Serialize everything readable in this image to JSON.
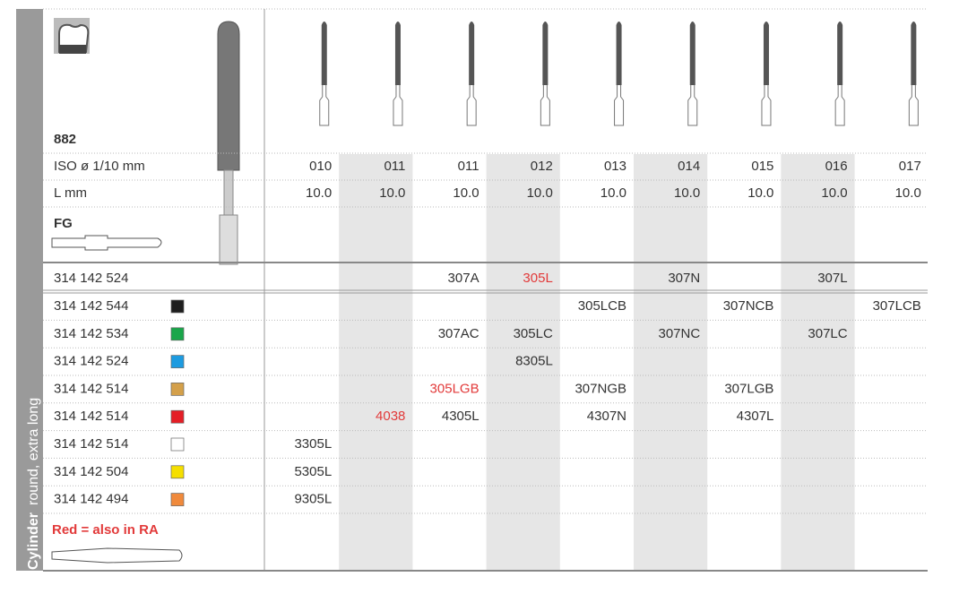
{
  "side_label": {
    "bold": "Cylinder",
    "normal": "round, extra long"
  },
  "header": {
    "code": "882"
  },
  "iso": {
    "label": "ISO ø 1/10 mm",
    "values": [
      "010",
      "011",
      "011",
      "012",
      "013",
      "014",
      "015",
      "016",
      "017"
    ]
  },
  "length": {
    "label": "L mm",
    "values": [
      "10.0",
      "10.0",
      "10.0",
      "10.0",
      "10.0",
      "10.0",
      "10.0",
      "10.0",
      "10.0"
    ]
  },
  "shank": "FG",
  "highlight_color": "#e23a3a",
  "rows": [
    {
      "ref": "314 142 524",
      "cells": [
        null,
        null,
        "307A",
        "305L",
        null,
        "307N",
        null,
        "307L",
        null
      ],
      "red": [
        3
      ]
    },
    {
      "ref": "314 142 544",
      "swatch": "#1e1e1e",
      "cells": [
        null,
        null,
        null,
        null,
        "305LCB",
        null,
        "307NCB",
        null,
        "307LCB"
      ],
      "red": []
    },
    {
      "ref": "314 142 534",
      "swatch": "#1aa64a",
      "cells": [
        null,
        null,
        "307AC",
        "305LC",
        null,
        "307NC",
        null,
        "307LC",
        null
      ],
      "red": []
    },
    {
      "ref": "314 142 524",
      "swatch": "#1d9be0",
      "cells": [
        null,
        null,
        null,
        "8305L",
        null,
        null,
        null,
        null,
        null
      ],
      "red": []
    },
    {
      "ref": "314 142 514",
      "swatch": "#d4a04a",
      "cells": [
        null,
        null,
        "305LGB",
        null,
        "307NGB",
        null,
        "307LGB",
        null,
        null
      ],
      "red": [
        2
      ]
    },
    {
      "ref": "314 142 514",
      "swatch": "#e41e26",
      "cells": [
        null,
        "4038",
        "4305L",
        null,
        "4307N",
        null,
        "4307L",
        null,
        null
      ],
      "red": [
        1
      ]
    },
    {
      "ref": "314 142 514",
      "swatch": "#ffffff",
      "cells": [
        "3305L",
        null,
        null,
        null,
        null,
        null,
        null,
        null,
        null
      ],
      "red": []
    },
    {
      "ref": "314 142 504",
      "swatch": "#f5df00",
      "cells": [
        "5305L",
        null,
        null,
        null,
        null,
        null,
        null,
        null,
        null
      ],
      "red": []
    },
    {
      "ref": "314 142 494",
      "swatch": "#f08a3c",
      "cells": [
        "9305L",
        null,
        null,
        null,
        null,
        null,
        null,
        null,
        null
      ],
      "red": []
    }
  ],
  "legend": "Red = also in RA"
}
